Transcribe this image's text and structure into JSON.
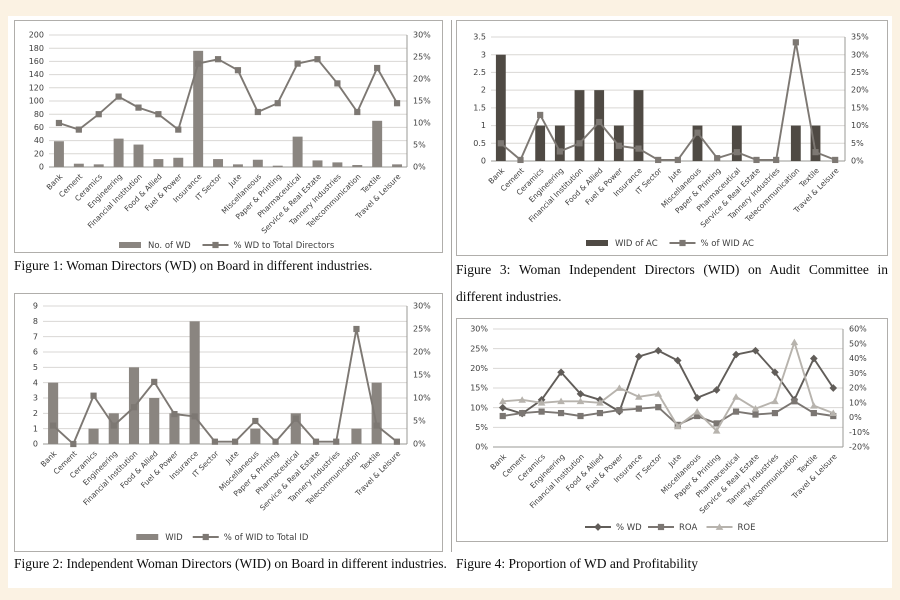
{
  "page": {
    "background": "#fbf2e3",
    "content_background": "#ffffff",
    "panel_border": "#b0aeab",
    "gridline_color": "#d9d7d4",
    "axis_line_color": "#9a9894",
    "axis_text_color": "#3d3d3d"
  },
  "categories": [
    "Bank",
    "Cement",
    "Ceramics",
    "Engineering",
    "Financial Institution",
    "Food & Allied",
    "Fuel & Power",
    "Insurance",
    "IT Sector",
    "Jute",
    "Miscellaneous",
    "Paper & Printing",
    "Pharmaceutical",
    "Service & Real Estate",
    "Tannery Industries",
    "Telecommunication",
    "Textile",
    "Travel & Leisure"
  ],
  "chart_data": [
    {
      "id": "figure1",
      "type": "bar",
      "caption": "Figure 1: Woman Directors (WD) on Board in different industries.",
      "legend_position": "bottom",
      "grid": true,
      "left_axis": {
        "min": 0,
        "max": 200,
        "step": 20,
        "tick_labels": [
          "0",
          "20",
          "40",
          "60",
          "80",
          "100",
          "120",
          "140",
          "160",
          "180",
          "200"
        ]
      },
      "right_axis": {
        "min": 0,
        "max": 30,
        "step": 5,
        "tick_labels": [
          "0%",
          "5%",
          "10%",
          "15%",
          "20%",
          "25%",
          "30%"
        ]
      },
      "series": [
        {
          "name": "No. of WD",
          "render": "bar",
          "axis": "left",
          "color": "#8a8580",
          "values": [
            39,
            5,
            4,
            43,
            34,
            12,
            14,
            176,
            12,
            4,
            11,
            2,
            46,
            10,
            7,
            3,
            70,
            4
          ]
        },
        {
          "name": "% WD to Total Directors",
          "render": "line",
          "marker": "square",
          "axis": "right",
          "color": "#7d7873",
          "values": [
            10,
            8.5,
            12,
            16,
            13.5,
            12,
            8.5,
            23.5,
            24.5,
            22,
            12.5,
            14.5,
            23.5,
            24.5,
            19,
            12.5,
            22.5,
            14.5
          ]
        }
      ]
    },
    {
      "id": "figure2",
      "type": "bar",
      "caption": "Figure 2: Independent Woman Directors (WID) on Board in different industries.",
      "legend_position": "bottom",
      "grid": true,
      "left_axis": {
        "min": 0,
        "max": 9,
        "step": 1,
        "tick_labels": [
          "0",
          "1",
          "2",
          "3",
          "4",
          "5",
          "6",
          "7",
          "8",
          "9"
        ]
      },
      "right_axis": {
        "min": 0,
        "max": 30,
        "step": 5,
        "tick_labels": [
          "0%",
          "5%",
          "10%",
          "15%",
          "20%",
          "25%",
          "30%"
        ]
      },
      "series": [
        {
          "name": "WID",
          "render": "bar",
          "axis": "left",
          "color": "#8a8580",
          "values": [
            4,
            0,
            1,
            2,
            5,
            3,
            2,
            8,
            0,
            0,
            1,
            0,
            2,
            0,
            0,
            1,
            4,
            0
          ]
        },
        {
          "name": "% of WID to Total ID",
          "render": "line",
          "marker": "square",
          "axis": "right",
          "color": "#7d7873",
          "values": [
            4,
            0,
            10.5,
            4,
            8,
            13.5,
            6.5,
            6,
            0.5,
            0.5,
            5,
            0.5,
            5.5,
            0.5,
            0.5,
            25,
            4,
            0.5
          ]
        }
      ]
    },
    {
      "id": "figure3",
      "type": "bar",
      "caption": "Figure 3: Woman Independent Directors (WID) on Audit Committee in different industries.",
      "legend_position": "bottom",
      "grid": true,
      "left_axis": {
        "min": 0,
        "max": 3.5,
        "step": 0.5,
        "tick_labels": [
          "0",
          "0.5",
          "1",
          "1.5",
          "2",
          "2.5",
          "3",
          "3.5"
        ]
      },
      "right_axis": {
        "min": 0,
        "max": 35,
        "step": 5,
        "tick_labels": [
          "0%",
          "5%",
          "10%",
          "15%",
          "20%",
          "25%",
          "30%",
          "35%"
        ]
      },
      "series": [
        {
          "name": "WID of AC",
          "render": "bar",
          "axis": "left",
          "color": "#4f4a44",
          "values": [
            3,
            0,
            1,
            1,
            2,
            2,
            1,
            2,
            0,
            0,
            1,
            0,
            1,
            0,
            0,
            1,
            1,
            0
          ]
        },
        {
          "name": "% of WID AC",
          "render": "line",
          "marker": "square",
          "axis": "right",
          "color": "#7d7873",
          "values": [
            5,
            0.3,
            13,
            2.7,
            5,
            11,
            4.3,
            3.5,
            0.3,
            0.3,
            8,
            0.8,
            2.5,
            0.3,
            0.3,
            33.5,
            2.5,
            0.3
          ]
        }
      ]
    },
    {
      "id": "figure4",
      "type": "line",
      "caption": "Figure 4: Proportion of WD and Profitability",
      "legend_position": "bottom",
      "grid": true,
      "left_axis": {
        "min": 0,
        "max": 30,
        "step": 5,
        "tick_labels": [
          "0%",
          "5%",
          "10%",
          "15%",
          "20%",
          "25%",
          "30%"
        ]
      },
      "right_axis": {
        "min": -20,
        "max": 60,
        "step": 10,
        "tick_labels": [
          "-20%",
          "-10%",
          "0%",
          "10%",
          "20%",
          "30%",
          "40%",
          "50%",
          "60%"
        ]
      },
      "series": [
        {
          "name": "% WD",
          "render": "line",
          "marker": "diamond",
          "axis": "left",
          "color": "#615d59",
          "values": [
            10,
            8.5,
            12,
            19,
            13.5,
            12,
            9,
            23,
            24.5,
            22,
            12.5,
            14.5,
            23.5,
            24.5,
            19,
            12,
            22.5,
            15
          ]
        },
        {
          "name": "ROA",
          "render": "line",
          "marker": "square",
          "axis": "right",
          "color": "#7b7672",
          "values": [
            1,
            3,
            4,
            3,
            1,
            3,
            5,
            6,
            7,
            -5,
            1,
            -4,
            4,
            2,
            3,
            11,
            3,
            1
          ]
        },
        {
          "name": "ROE",
          "render": "line",
          "marker": "triangle",
          "axis": "right",
          "color": "#b7b3ad",
          "values": [
            11,
            12,
            10,
            11,
            11,
            10,
            20,
            14,
            16,
            -6,
            4,
            -9,
            14,
            6,
            11,
            51,
            8,
            3
          ]
        }
      ]
    }
  ]
}
